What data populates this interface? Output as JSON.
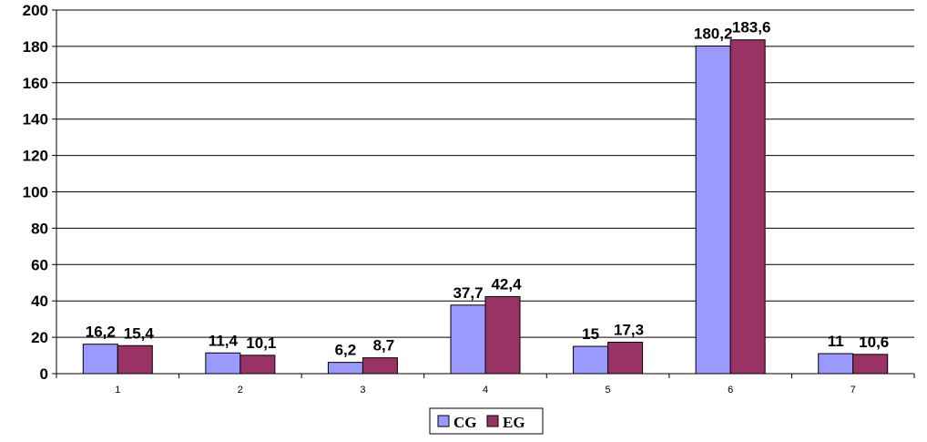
{
  "chart_data": {
    "type": "bar",
    "categories": [
      "1",
      "2",
      "3",
      "4",
      "5",
      "6",
      "7"
    ],
    "series": [
      {
        "name": "CG",
        "color": "#9999ff",
        "values": [
          16.2,
          11.4,
          6.2,
          37.7,
          15,
          180.2,
          11
        ],
        "labels": [
          "16,2",
          "11,4",
          "6,2",
          "37,7",
          "15",
          "180,2",
          "11"
        ]
      },
      {
        "name": "EG",
        "color": "#993366",
        "values": [
          15.4,
          10.1,
          8.7,
          42.4,
          17.3,
          183.6,
          10.6
        ],
        "labels": [
          "15,4",
          "10,1",
          "8,7",
          "42,4",
          "17,3",
          "183,6",
          "10,6"
        ]
      }
    ],
    "ylim": [
      0,
      200
    ],
    "yticks": [
      "0",
      "20",
      "40",
      "60",
      "80",
      "100",
      "120",
      "140",
      "160",
      "180",
      "200"
    ],
    "grid": true,
    "legend": "bottom-center"
  }
}
